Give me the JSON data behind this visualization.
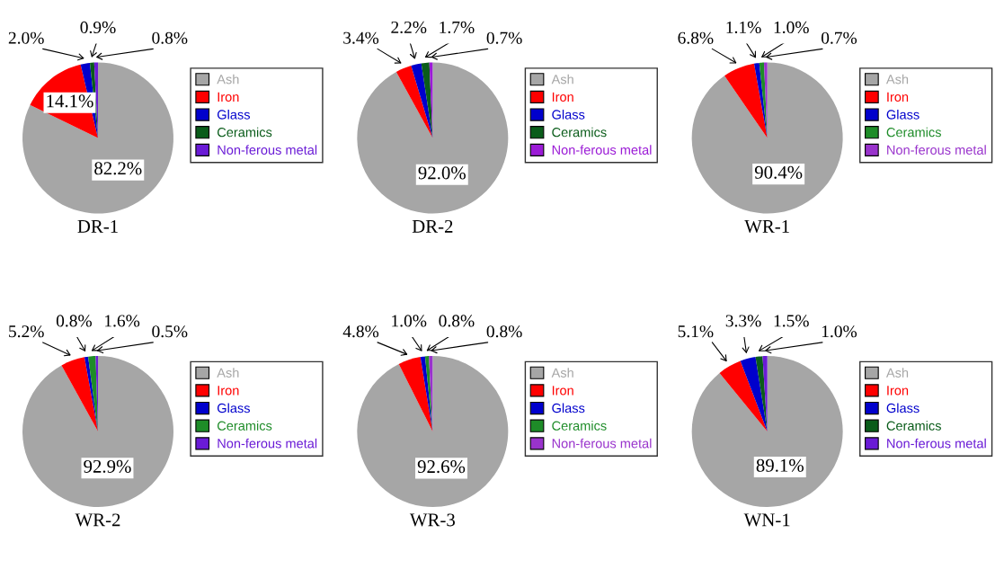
{
  "chart_data": [
    {
      "type": "pie",
      "title": "DR-1",
      "categories": [
        "Ash",
        "Iron",
        "Glass",
        "Ceramics",
        "Non-ferous metal"
      ],
      "values": [
        82.2,
        14.1,
        2.0,
        0.9,
        0.8
      ],
      "value_labels": [
        "82.2%",
        "14.1%",
        "2.0%",
        "0.9%",
        "0.8%"
      ],
      "colors": [
        "#a6a6a6",
        "#ff0000",
        "#0000cc",
        "#0a5c1a",
        "#6a1bd6"
      ],
      "legend": "right"
    },
    {
      "type": "pie",
      "title": "DR-2",
      "categories": [
        "Ash",
        "Iron",
        "Glass",
        "Ceramics",
        "Non-ferous metal"
      ],
      "values": [
        92.0,
        3.4,
        2.2,
        1.7,
        0.7
      ],
      "value_labels": [
        "92.0%",
        "3.4%",
        "2.2%",
        "1.7%",
        "0.7%"
      ],
      "colors": [
        "#a6a6a6",
        "#ff0000",
        "#0000cc",
        "#0a5c1a",
        "#9b1bd6"
      ],
      "legend": "right"
    },
    {
      "type": "pie",
      "title": "WR-1",
      "categories": [
        "Ash",
        "Iron",
        "Glass",
        "Ceramics",
        "Non-ferous metal"
      ],
      "values": [
        90.4,
        6.8,
        1.1,
        1.0,
        0.7
      ],
      "value_labels": [
        "90.4%",
        "6.8%",
        "1.1%",
        "1.0%",
        "0.7%"
      ],
      "colors": [
        "#a6a6a6",
        "#ff0000",
        "#0000cc",
        "#1e8c28",
        "#9933cc"
      ],
      "legend": "right"
    },
    {
      "type": "pie",
      "title": "WR-2",
      "categories": [
        "Ash",
        "Iron",
        "Glass",
        "Ceramics",
        "Non-ferous metal"
      ],
      "values": [
        92.9,
        5.2,
        0.8,
        1.6,
        0.5
      ],
      "value_labels": [
        "92.9%",
        "5.2%",
        "0.8%",
        "1.6%",
        "0.5%"
      ],
      "colors": [
        "#a6a6a6",
        "#ff0000",
        "#0000cc",
        "#1e8c28",
        "#6a1bd6"
      ],
      "legend": "right"
    },
    {
      "type": "pie",
      "title": "WR-3",
      "categories": [
        "Ash",
        "Iron",
        "Glass",
        "Ceramics",
        "Non-ferous metal"
      ],
      "values": [
        92.6,
        4.8,
        1.0,
        0.8,
        0.8
      ],
      "value_labels": [
        "92.6%",
        "4.8%",
        "1.0%",
        "0.8%",
        "0.8%"
      ],
      "colors": [
        "#a6a6a6",
        "#ff0000",
        "#0000cc",
        "#1e8c28",
        "#9933cc"
      ],
      "legend": "right"
    },
    {
      "type": "pie",
      "title": "WN-1",
      "categories": [
        "Ash",
        "Iron",
        "Glass",
        "Ceramics",
        "Non-ferous metal"
      ],
      "values": [
        89.1,
        5.1,
        3.3,
        1.5,
        1.0
      ],
      "value_labels": [
        "89.1%",
        "5.1%",
        "3.3%",
        "1.5%",
        "1.0%"
      ],
      "colors": [
        "#a6a6a6",
        "#ff0000",
        "#0000cc",
        "#0a5c1a",
        "#6a1bd6"
      ],
      "legend": "right"
    }
  ]
}
